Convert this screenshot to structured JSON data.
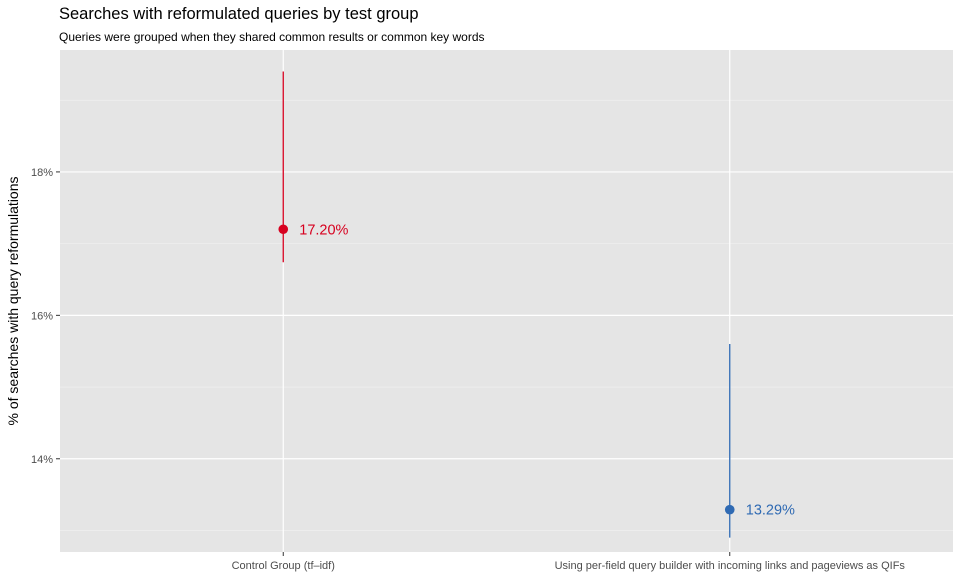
{
  "chart_data": {
    "type": "scatter",
    "title": "Searches with reformulated queries by test group",
    "subtitle": "Queries were grouped when they shared common results or common key words",
    "xlabel": "",
    "ylabel": "% of searches with query reformulations",
    "ylim": [
      12.7,
      19.7
    ],
    "yticks": [
      14,
      16,
      18
    ],
    "ytick_labels": [
      "14%",
      "16%",
      "18%"
    ],
    "categories": [
      "Control Group (tf–idf)",
      "Using per-field query builder with incoming links and pageviews as QIFs"
    ],
    "points": [
      {
        "category": "Control Group (tf–idf)",
        "value": 17.2,
        "lower": 16.74,
        "upper": 19.4,
        "label": "17.20%",
        "color": "#d7001f"
      },
      {
        "category": "Using per-field query builder with incoming links and pageviews as QIFs",
        "value": 13.29,
        "lower": 12.9,
        "upper": 15.6,
        "label": "13.29%",
        "color": "#2f6ab3"
      }
    ],
    "grid": true,
    "legend": "none",
    "panel_background": "#e5e5e5"
  }
}
